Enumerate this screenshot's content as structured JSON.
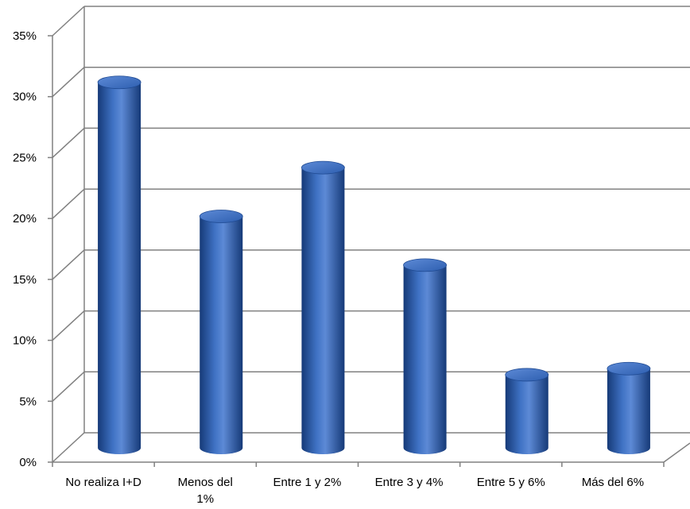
{
  "chart_data": {
    "type": "bar",
    "style": "3d-cylinder",
    "categories": [
      "No realiza I+D",
      "Menos del 1%",
      "Entre 1 y 2%",
      "Entre 3 y 4%",
      "Entre 5 y 6%",
      "Más del 6%"
    ],
    "category_lines": [
      [
        "No realiza I+D"
      ],
      [
        "Menos del",
        "1%"
      ],
      [
        "Entre 1 y 2%"
      ],
      [
        "Entre 3 y 4%"
      ],
      [
        "Entre 5 y 6%"
      ],
      [
        "Más del 6%"
      ]
    ],
    "values": [
      0.3,
      0.19,
      0.23,
      0.15,
      0.06,
      0.065
    ],
    "ylim": [
      0,
      0.35
    ],
    "yticks": [
      0,
      0.05,
      0.1,
      0.15,
      0.2,
      0.25,
      0.3,
      0.35
    ],
    "ytick_labels": [
      "0%",
      "5%",
      "10%",
      "15%",
      "20%",
      "25%",
      "30%",
      "35%"
    ],
    "title": "",
    "xlabel": "",
    "ylabel": "",
    "grid": true,
    "legend": "none",
    "colors": {
      "bar": "#2e5fb0",
      "bar_dark": "#163a78",
      "bar_light": "#5d8ad6",
      "bar_top": "#3f72c4",
      "grid": "#808080",
      "axis": "#808080"
    }
  }
}
